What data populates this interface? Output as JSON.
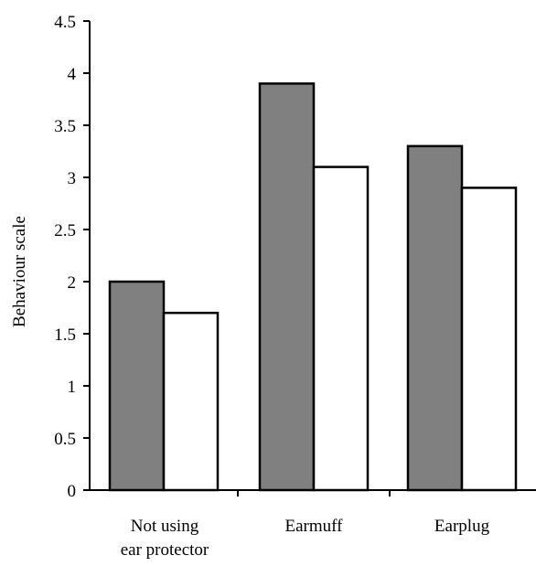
{
  "chart_data": {
    "type": "bar",
    "categories": [
      [
        "Not using",
        "ear protector"
      ],
      [
        "Earmuff"
      ],
      [
        "Earplug"
      ]
    ],
    "series": [
      {
        "values": [
          2.0,
          3.9,
          3.3
        ],
        "color": "#808080"
      },
      {
        "values": [
          1.7,
          3.1,
          2.9
        ],
        "color": "#ffffff"
      }
    ],
    "ylabel": "Behaviour scale",
    "ylim": [
      0,
      4.5
    ],
    "yticks": [
      {
        "value": 0,
        "label": "0"
      },
      {
        "value": 0.5,
        "label": "0.5"
      },
      {
        "value": 1,
        "label": "1"
      },
      {
        "value": 1.5,
        "label": "1.5"
      },
      {
        "value": 2,
        "label": "2"
      },
      {
        "value": 2.5,
        "label": "2.5"
      },
      {
        "value": 3,
        "label": "3"
      },
      {
        "value": 3.5,
        "label": "3.5"
      },
      {
        "value": 4,
        "label": "4"
      },
      {
        "value": 4.5,
        "label": "4.5"
      }
    ],
    "grid": false,
    "legend": "none"
  }
}
